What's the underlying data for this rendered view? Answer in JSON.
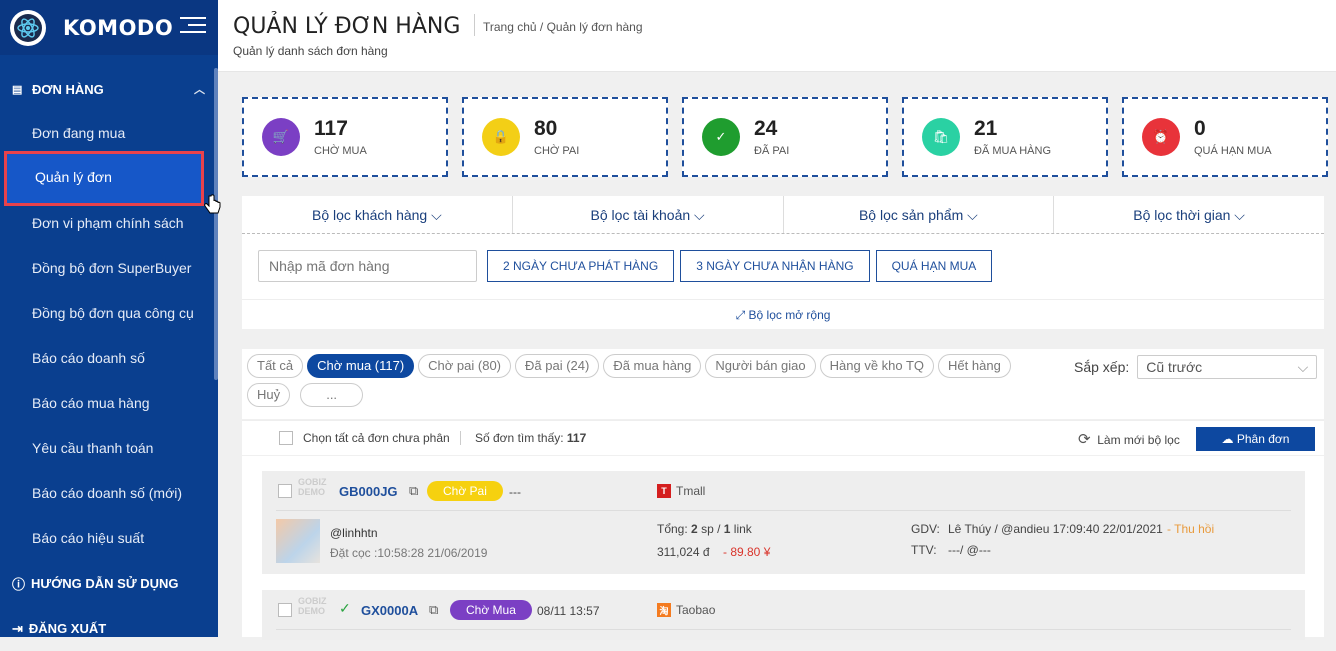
{
  "brand": {
    "name": "KOMODO"
  },
  "sidebar": {
    "section": "ĐƠN HÀNG",
    "items": [
      {
        "label": "Đơn đang mua"
      },
      {
        "label": "Quản lý đơn"
      },
      {
        "label": "Đơn vi phạm chính sách"
      },
      {
        "label": "Đồng bộ đơn SuperBuyer"
      },
      {
        "label": "Đồng bộ đơn qua công cụ"
      },
      {
        "label": "Báo cáo doanh số"
      },
      {
        "label": "Báo cáo mua hàng"
      },
      {
        "label": "Yêu cầu thanh toán"
      },
      {
        "label": "Báo cáo doanh số (mới)"
      },
      {
        "label": "Báo cáo hiệu suất"
      }
    ],
    "guide": "HƯỚNG DẪN SỬ DỤNG",
    "logout": "ĐĂNG XUẤT"
  },
  "header": {
    "title": "QUẢN LÝ ĐƠN HÀNG",
    "subtitle": "Quản lý danh sách đơn hàng",
    "breadcrumb": "Trang chủ  / Quản lý đơn hàng"
  },
  "stats": [
    {
      "value": "117",
      "label": "CHỜ MUA",
      "color": "#7b3fc4"
    },
    {
      "value": "80",
      "label": "CHỜ PAI",
      "color": "#f3cf16"
    },
    {
      "value": "24",
      "label": "ĐÃ PAI",
      "color": "#1f9d2f"
    },
    {
      "value": "21",
      "label": "ĐÃ MUA HÀNG",
      "color": "#2ad1a3"
    },
    {
      "value": "0",
      "label": "QUÁ HẠN MUA",
      "color": "#e8333a"
    }
  ],
  "filters": {
    "tabs": [
      "Bộ lọc khách hàng",
      "Bộ lọc tài khoản",
      "Bộ lọc sản phẩm",
      "Bộ lọc thời gian"
    ],
    "search_placeholder": "Nhập mã đơn hàng",
    "quick": [
      "2 NGÀY CHƯA PHÁT HÀNG",
      "3 NGÀY CHƯA NHẬN HÀNG",
      "QUÁ HẠN MUA"
    ],
    "expand": "Bộ lọc mở rộng"
  },
  "status_pills": [
    "Tất cả",
    "Chờ mua (117)",
    "Chờ pai (80)",
    "Đã pai (24)",
    "Đã mua hàng",
    "Người bán giao",
    "Hàng về kho TQ",
    "Hết hàng",
    "Huỷ",
    "..."
  ],
  "sort": {
    "label": "Sắp xếp:",
    "value": "Cũ trước"
  },
  "toolbar": {
    "select_all": "Chọn tất cả đơn chưa phân",
    "found_label": "Số đơn tìm thấy:",
    "found_count": "117",
    "refresh": "Làm mới bộ lọc",
    "assign": "Phân đơn"
  },
  "orders": [
    {
      "ghost": "GOBIZ DEMO",
      "code": "GB000JG",
      "status": "Chờ Pai",
      "status_color": "#f6d10f",
      "status_text_color": "#fff",
      "time": "---",
      "shop": "Tmall",
      "shop_color": "#d41e1e",
      "customer": "@linhhtn",
      "deposit": "Đặt cọc :10:58:28 21/06/2019",
      "total_label": "Tổng:",
      "qty_sp": "2",
      "unit_sp": "sp /",
      "qty_link": "1",
      "unit_link": "link",
      "price_vnd": "311,024 đ",
      "price_cny": "- 89.80 ¥",
      "gdv_label": "GDV:",
      "gdv": "Lê Thúy / @andieu 17:09:40 22/01/2021",
      "revoke": "- Thu hồi",
      "ttv_label": "TTV:",
      "ttv": "---/ @---"
    },
    {
      "ghost": "GOBIZ DEMO",
      "code": "GX0000A",
      "status": "Chờ Mua",
      "status_color": "#7b3fc4",
      "status_text_color": "#fff",
      "time": "08/11 13:57",
      "shop": "Taobao",
      "shop_color": "#f47b20"
    }
  ]
}
